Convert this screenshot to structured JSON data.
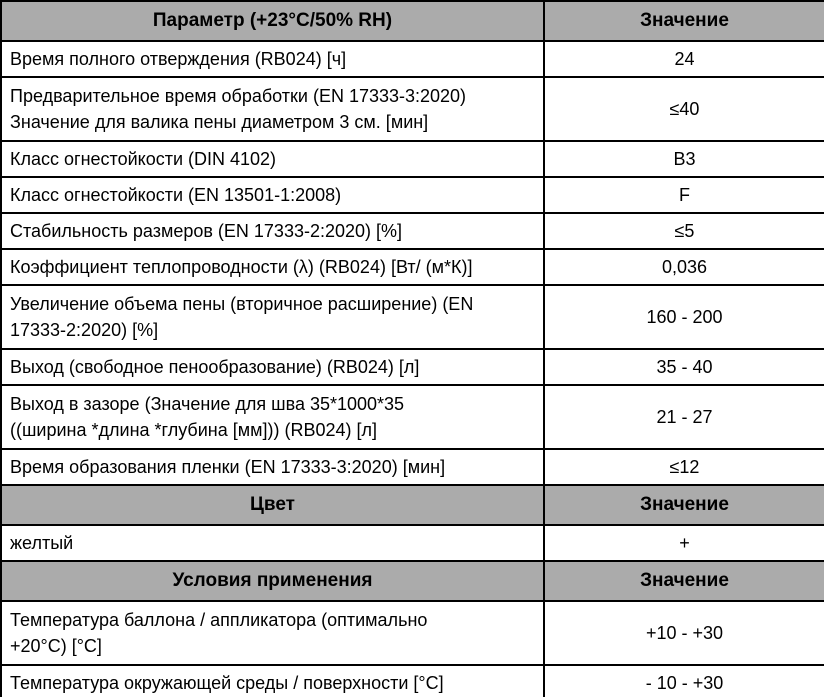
{
  "colors": {
    "header_bg": "#ababab",
    "border": "#000000",
    "row_bg": "#ffffff",
    "text": "#000000"
  },
  "sections": [
    {
      "header": {
        "param": "Параметр (+23°C/50% RH)",
        "value": "Значение"
      },
      "rows": [
        {
          "param": "Время полного отверждения (RB024) [ч]",
          "value": "24"
        },
        {
          "param": "Предварительное время обработки (EN 17333-3:2020)\nЗначение для валика пены диаметром 3 см. [мин]",
          "value": "≤40"
        },
        {
          "param": "Класс огнестойкости (DIN 4102)",
          "value": "B3"
        },
        {
          "param": "Класс огнестойкости (EN 13501-1:2008)",
          "value": "F"
        },
        {
          "param": "Стабильность размеров (EN 17333-2:2020) [%]",
          "value": "≤5"
        },
        {
          "param": "Коэффициент теплопроводности (λ) (RB024) [Вт/ (м*К)]",
          "value": "0,036"
        },
        {
          "param": "Увеличение объема пены (вторичное расширение) (EN\n17333-2:2020) [%]",
          "value": "160 - 200"
        },
        {
          "param": "Выход (свободное пенообразование) (RB024) [л]",
          "value": "35 - 40"
        },
        {
          "param": "Выход в зазоре (Значение для шва 35*1000*35\n((ширина *длина *глубина [мм])) (RB024) [л]",
          "value": "21 - 27"
        },
        {
          "param": "Время образования пленки (EN 17333-3:2020) [мин]",
          "value": "≤12"
        }
      ]
    },
    {
      "header": {
        "param": "Цвет",
        "value": "Значение"
      },
      "rows": [
        {
          "param": "желтый",
          "value": "+"
        }
      ]
    },
    {
      "header": {
        "param": "Условия применения",
        "value": "Значение"
      },
      "rows": [
        {
          "param": "Температура баллона / аппликатора (оптимально\n+20°C) [°C]",
          "value": "+10 - +30"
        },
        {
          "param": "Температура окружающей среды / поверхности [°C]",
          "value": "- 10 - +30"
        }
      ]
    }
  ]
}
